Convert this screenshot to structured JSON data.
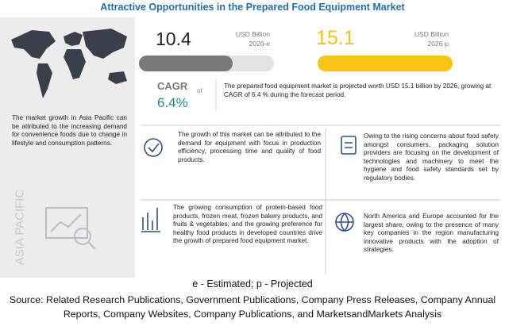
{
  "header": {
    "title": "Attractive Opportunities in the Prepared Food Equipment Market"
  },
  "market": {
    "value_2020": "10.4",
    "unit_2020": "USD Billion",
    "year_2020": "2020-e",
    "value_2026": "15.1",
    "unit_2026": "USD Billion",
    "year_2026": "2026-p",
    "cagr_label": "CAGR",
    "cagr_of": "of",
    "cagr_value": "6.4%",
    "summary": "The prepared food equipment market is projected worth USD 15.1 billion by 2026, growing at CAGR of 6.4 % during the forecast period."
  },
  "region": {
    "name": "ASIA PACIFIC",
    "text": "The market growth in Asia Pacific can be attributed to the increasing demand for convenience foods due to change in lifestyle and consumption patterns."
  },
  "insights": [
    "The growth of this market can be attributed to the demand for equipment with focus in production efficiency, processing time and quality of food products.",
    "Owing to the rising concerns about food safety amongst consumers, packaging solution providers are focusing on the development of technologies and machinery to meet the hygiene and food safety standards set by regulatory bodies.",
    "The growing consumption of protein-based food products, frozen meat, frozen bakery products, and fruits & vegetables; and the growing preference for healthy food products in developed countries drive the growth of prepared food equipment market.",
    "North America and Europe accounted for the largest share, owing to the presence of many key companies in the region manufacturing innovative products with the adoption of strategies."
  ],
  "footer": {
    "note": "e - Estimated; p - Projected",
    "source": "Source: Related Research Publications, Government Publications, Company Press Releases, Company Annual Reports, Company Websites, Company Publications, and MarketsandMarkets Analysis"
  }
}
